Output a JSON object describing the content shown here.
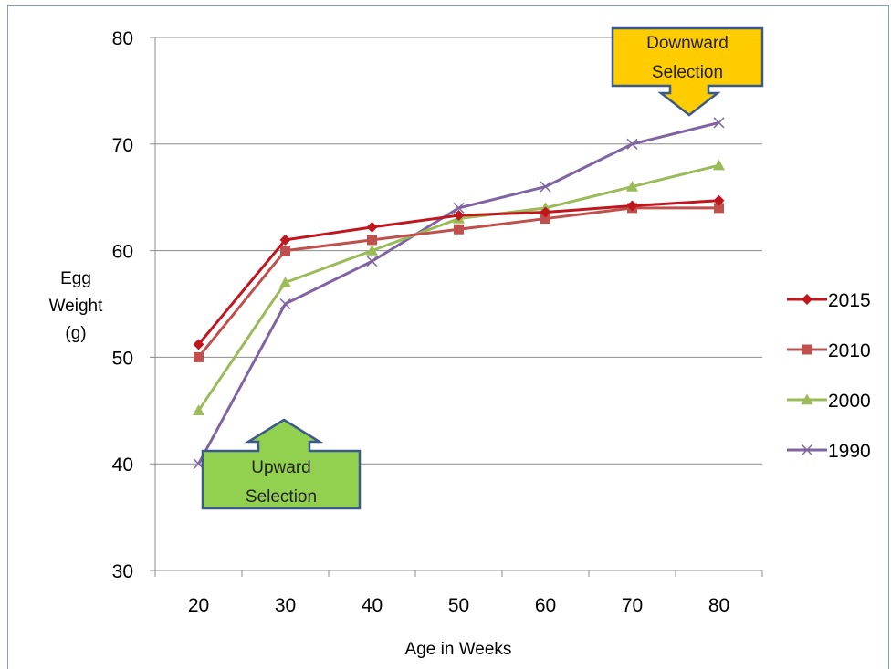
{
  "chart_data": {
    "type": "line",
    "xlabel": "Age in Weeks",
    "ylabel_lines": [
      "Egg",
      "Weight",
      "(g)"
    ],
    "x": [
      20,
      30,
      40,
      50,
      60,
      70,
      80
    ],
    "ylim": [
      30,
      80
    ],
    "yticks": [
      30,
      40,
      50,
      60,
      70,
      80
    ],
    "grid": true,
    "legend_position": "right",
    "series": [
      {
        "name": "2015",
        "color": "#c0161e",
        "marker": "diamond",
        "values": [
          51.2,
          61,
          62.2,
          63.3,
          63.6,
          64.2,
          64.7
        ]
      },
      {
        "name": "2010",
        "color": "#c0504d",
        "marker": "square",
        "values": [
          50,
          60,
          61,
          62,
          63,
          64,
          64
        ]
      },
      {
        "name": "2000",
        "color": "#9bbb59",
        "marker": "triangle",
        "values": [
          45,
          57,
          60,
          63,
          64,
          66,
          68
        ]
      },
      {
        "name": "1990",
        "color": "#8064a2",
        "marker": "x",
        "values": [
          40,
          55,
          59,
          64,
          66,
          70,
          72
        ]
      }
    ],
    "annotations": [
      {
        "id": "downward",
        "lines": [
          "Downward",
          "Selection"
        ],
        "color": "#ffcc00",
        "arrow": "down"
      },
      {
        "id": "upward",
        "lines": [
          "Upward",
          "Selection"
        ],
        "color": "#92d050",
        "arrow": "up"
      }
    ]
  }
}
